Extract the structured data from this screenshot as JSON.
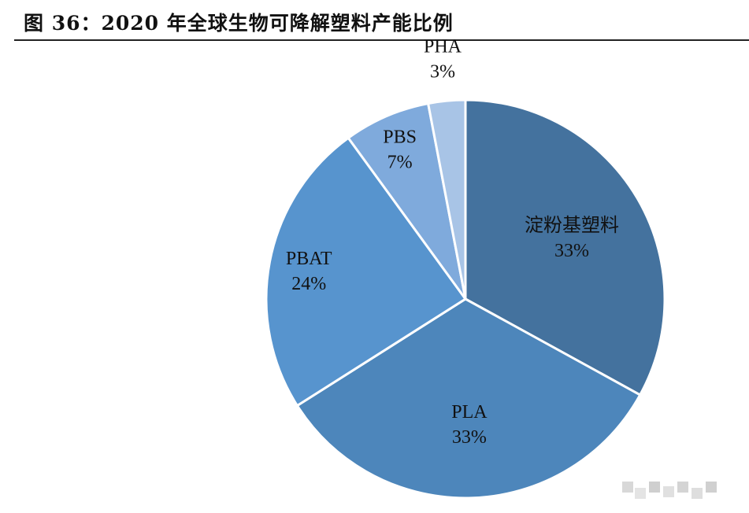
{
  "title": "图 36：2020 年全球生物可降解塑料产能比例",
  "chart_data": {
    "type": "pie",
    "title": "图 36：2020 年全球生物可降解塑料产能比例",
    "categories": [
      "淀粉基塑料",
      "PLA",
      "PBAT",
      "PBS",
      "PHA"
    ],
    "values": [
      33,
      33,
      24,
      7,
      3
    ],
    "value_labels": [
      "33%",
      "33%",
      "24%",
      "7%",
      "3%"
    ],
    "colors": [
      "#44729e",
      "#4d86bb",
      "#5794ce",
      "#7faadc",
      "#a8c4e6"
    ],
    "start": "12 o'clock",
    "direction": "clockwise",
    "legend": "none"
  }
}
